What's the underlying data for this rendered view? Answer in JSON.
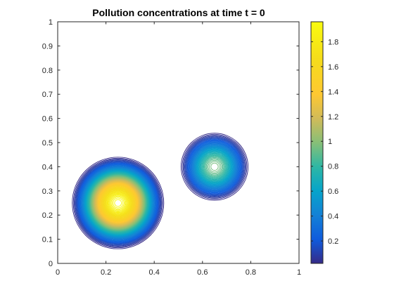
{
  "chart_data": {
    "type": "contour",
    "title": "Pollution concentrations at time t = 0",
    "xlabel": "",
    "ylabel": "",
    "xlim": [
      0,
      1
    ],
    "ylim": [
      0,
      1
    ],
    "x_ticks": [
      "0",
      "0.2",
      "0.4",
      "0.6",
      "0.8",
      "1"
    ],
    "y_ticks": [
      "0",
      "0.1",
      "0.2",
      "0.3",
      "0.4",
      "0.5",
      "0.6",
      "0.7",
      "0.8",
      "0.9",
      "1"
    ],
    "grid": false,
    "colormap": "parula",
    "colorbar": {
      "range": [
        0.02,
        1.96
      ],
      "ticks": [
        "0.2",
        "0.4",
        "0.6",
        "0.8",
        "1",
        "1.2",
        "1.4",
        "1.6",
        "1.8"
      ]
    },
    "sources": [
      {
        "center": [
          0.25,
          0.25
        ],
        "radius": 0.2,
        "peak": 1.96
      },
      {
        "center": [
          0.65,
          0.4
        ],
        "radius": 0.15,
        "peak": 0.98
      }
    ]
  }
}
